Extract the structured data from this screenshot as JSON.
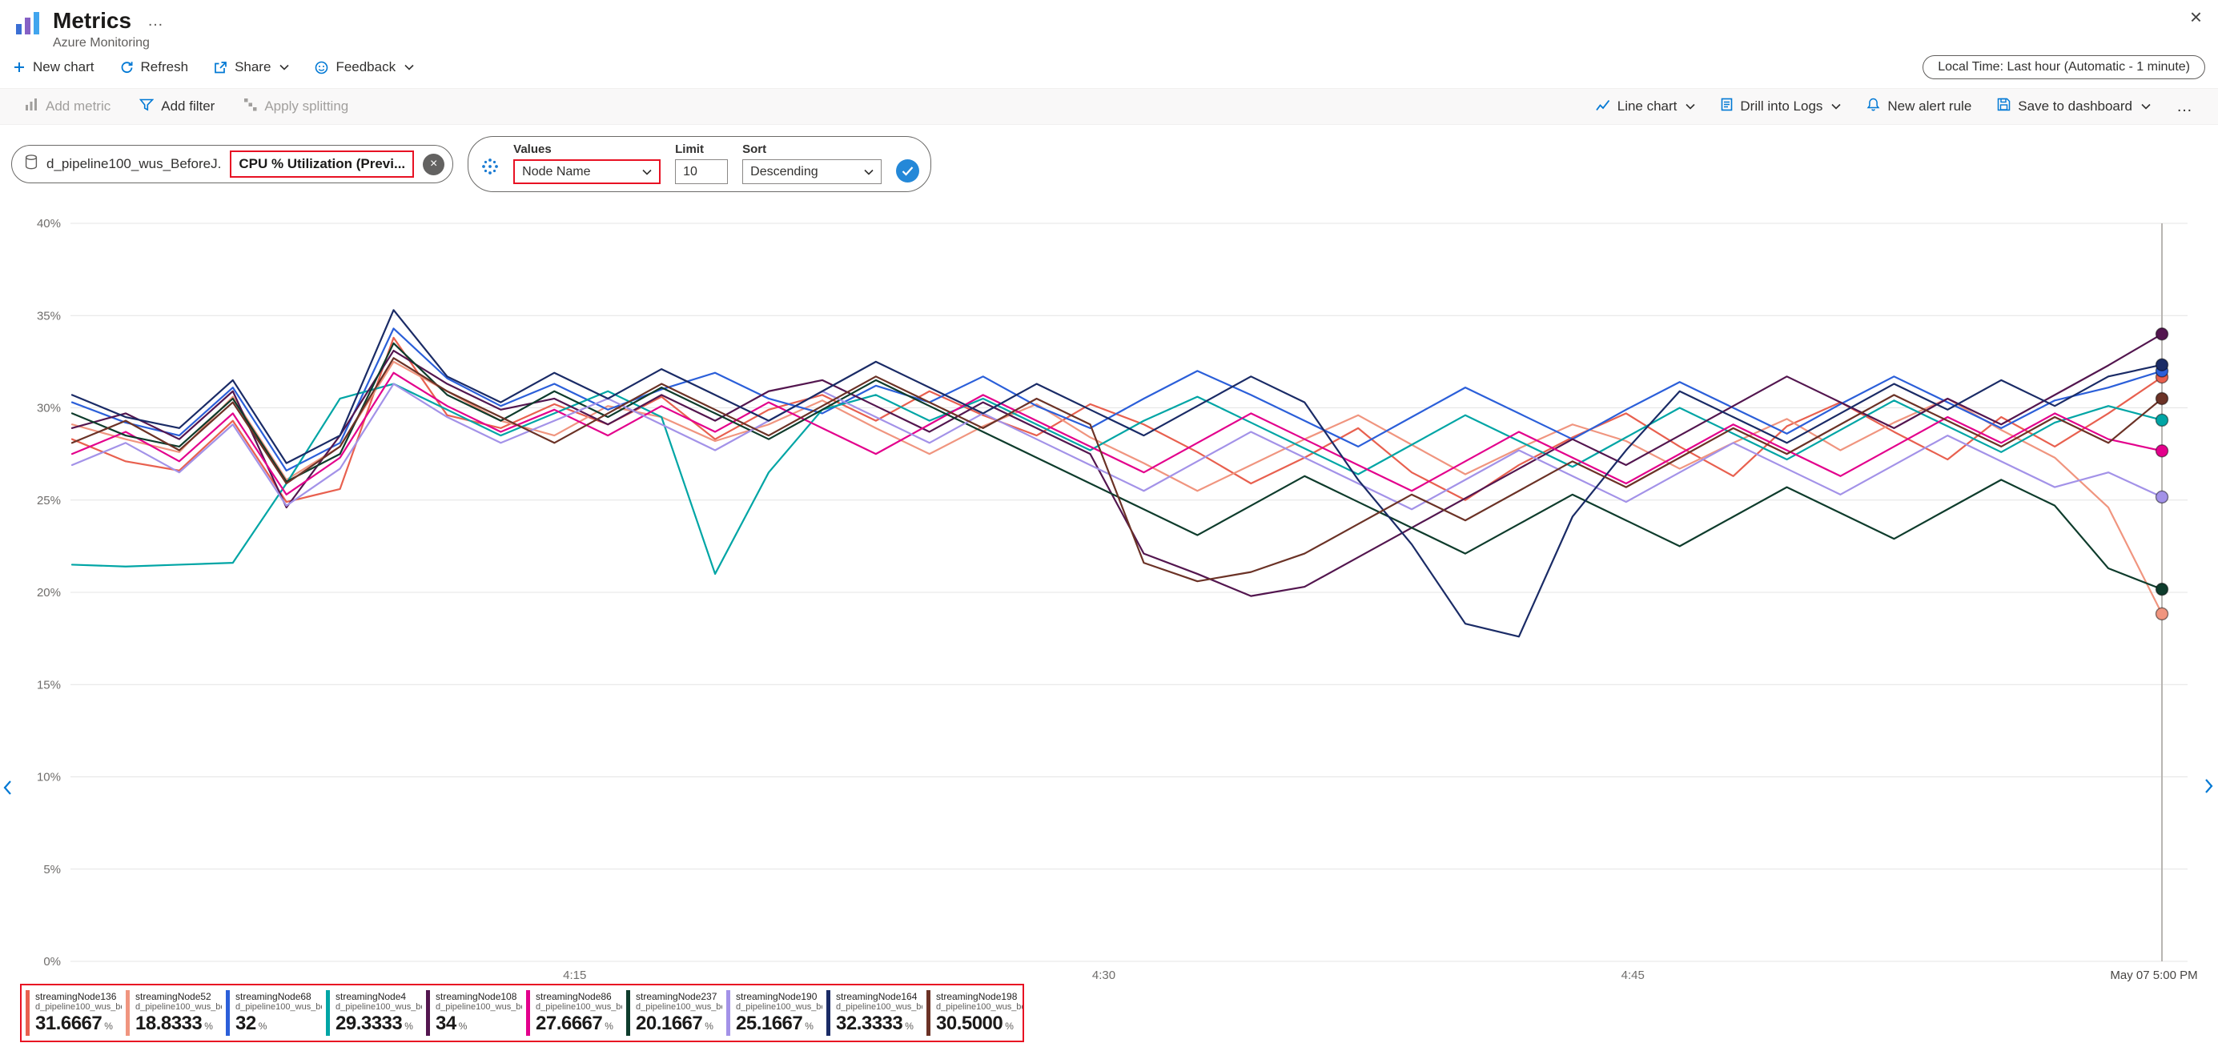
{
  "header": {
    "title": "Metrics",
    "subtitle": "Azure Monitoring",
    "more_glyph": "…",
    "close_glyph": "×"
  },
  "commandbar": {
    "items": [
      "New chart",
      "Refresh",
      "Share",
      "Feedback"
    ],
    "local_time": "Local Time: Last hour (Automatic - 1 minute)"
  },
  "toolbar": {
    "add_metric": "Add metric",
    "add_filter": "Add filter",
    "apply_splitting": "Apply splitting",
    "line_chart": "Line chart",
    "drill_into_logs": "Drill into Logs",
    "new_alert_rule": "New alert rule",
    "save_to_dashboard": "Save to dashboard",
    "more_glyph": "…"
  },
  "filters": {
    "resource": "d_pipeline100_wus_BeforeJ.",
    "metric": "CPU % Utilization (Previ...",
    "remove_glyph": "×",
    "values_label": "Values",
    "values_value": "Node Name",
    "limit_label": "Limit",
    "limit_value": "10",
    "sort_label": "Sort",
    "sort_value": "Descending"
  },
  "chart_data": {
    "type": "line",
    "title": "CPU % Utilization split by Node Name",
    "unit": "%",
    "ylim": [
      0,
      40
    ],
    "y_ticks": [
      0,
      5,
      10,
      15,
      20,
      25,
      30,
      35,
      40
    ],
    "x_ticks": [
      {
        "minute": 15,
        "label": "4:15"
      },
      {
        "minute": 30,
        "label": "4:30"
      },
      {
        "minute": 45,
        "label": "4:45"
      }
    ],
    "x_end_label": "May 07 5:00 PM",
    "time_window": "Last hour (Automatic - 1 minute)",
    "grid": true,
    "legend_position": "bottom",
    "series": [
      {
        "name": "streamingNode136",
        "color": "#E8604F",
        "values": [
          28.3,
          27.1,
          26.6,
          29.3,
          24.9,
          25.6,
          33.8,
          29.6,
          28.9,
          30.2,
          29.1,
          30.6,
          28.3,
          29.9,
          30.7,
          29.3,
          30.9,
          29.6,
          28.5,
          30.2,
          29.1,
          27.6,
          25.9,
          27.3,
          28.9,
          26.5,
          25.0,
          26.9,
          28.4,
          29.7,
          27.9,
          26.3,
          29.0,
          30.3,
          28.7,
          27.2,
          29.5,
          27.9,
          29.7,
          31.6667
        ]
      },
      {
        "name": "streamingNode52",
        "color": "#F0957F",
        "values": [
          29.1,
          28.3,
          27.6,
          30.6,
          26.1,
          27.9,
          32.5,
          30.9,
          29.3,
          28.5,
          30.1,
          29.5,
          28.2,
          29.1,
          30.4,
          28.9,
          27.5,
          29.0,
          30.2,
          28.4,
          27.0,
          25.5,
          26.9,
          28.3,
          29.6,
          28.0,
          26.4,
          27.8,
          29.1,
          28.2,
          26.7,
          28.1,
          29.4,
          27.7,
          29.2,
          30.5,
          28.8,
          27.3,
          24.6,
          18.8333
        ]
      },
      {
        "name": "streamingNode68",
        "color": "#2B5FD9",
        "values": [
          30.3,
          29.2,
          28.5,
          31.1,
          26.6,
          28.1,
          34.3,
          31.6,
          30.1,
          31.3,
          29.9,
          31.0,
          31.9,
          30.5,
          29.7,
          31.2,
          30.3,
          31.7,
          30.1,
          28.9,
          30.5,
          32.0,
          30.7,
          29.3,
          27.9,
          29.5,
          31.1,
          29.7,
          28.3,
          29.9,
          31.4,
          30.0,
          28.6,
          30.2,
          31.7,
          30.3,
          28.9,
          30.4,
          31.1,
          32
        ]
      },
      {
        "name": "streamingNode4",
        "color": "#00A5A5",
        "values": [
          21.5,
          21.4,
          21.5,
          21.6,
          25.9,
          30.5,
          31.3,
          29.9,
          28.5,
          29.7,
          30.9,
          29.5,
          21.0,
          26.5,
          29.9,
          30.7,
          29.3,
          30.5,
          29.1,
          27.7,
          29.3,
          30.6,
          29.2,
          27.8,
          26.4,
          28.0,
          29.6,
          28.2,
          26.8,
          28.4,
          30.0,
          28.6,
          27.2,
          28.8,
          30.4,
          29.0,
          27.6,
          29.2,
          30.1,
          29.3333
        ]
      },
      {
        "name": "streamingNode108",
        "color": "#53164F",
        "values": [
          28.9,
          29.7,
          28.3,
          30.9,
          24.6,
          28.5,
          33.1,
          31.3,
          29.9,
          30.5,
          29.1,
          30.7,
          29.3,
          30.9,
          31.5,
          30.1,
          28.7,
          30.3,
          28.9,
          27.5,
          22.1,
          21.0,
          19.8,
          20.3,
          21.9,
          23.5,
          25.1,
          26.7,
          28.3,
          26.9,
          28.5,
          30.1,
          31.7,
          30.3,
          28.9,
          30.5,
          29.1,
          30.7,
          32.3,
          34
        ]
      },
      {
        "name": "streamingNode86",
        "color": "#E3008C",
        "values": [
          27.5,
          28.7,
          27.1,
          29.7,
          25.3,
          27.3,
          31.9,
          30.1,
          28.7,
          29.9,
          28.5,
          30.1,
          28.7,
          30.3,
          28.9,
          27.5,
          29.1,
          30.7,
          29.3,
          27.9,
          26.5,
          28.1,
          29.7,
          28.3,
          26.9,
          25.5,
          27.1,
          28.7,
          27.3,
          25.9,
          27.5,
          29.1,
          27.7,
          26.3,
          27.9,
          29.5,
          28.1,
          29.7,
          28.3,
          27.6667
        ]
      },
      {
        "name": "streamingNode237",
        "color": "#0E3C2C",
        "values": [
          29.7,
          28.5,
          27.9,
          30.5,
          26.0,
          27.5,
          33.5,
          30.7,
          29.3,
          30.9,
          29.5,
          31.1,
          29.7,
          28.3,
          29.9,
          31.5,
          30.1,
          28.7,
          27.3,
          25.9,
          24.5,
          23.1,
          24.7,
          26.3,
          24.9,
          23.5,
          22.1,
          23.7,
          25.3,
          23.9,
          22.5,
          24.1,
          25.7,
          24.3,
          22.9,
          24.5,
          26.1,
          24.7,
          21.3,
          20.1667
        ]
      },
      {
        "name": "streamingNode190",
        "color": "#A392E8",
        "values": [
          26.9,
          28.1,
          26.5,
          29.1,
          24.7,
          26.7,
          31.3,
          29.5,
          28.1,
          29.3,
          30.5,
          29.1,
          27.7,
          29.3,
          30.9,
          29.5,
          28.1,
          29.7,
          28.3,
          26.9,
          25.5,
          27.1,
          28.7,
          27.3,
          25.9,
          24.5,
          26.1,
          27.7,
          26.3,
          24.9,
          26.5,
          28.1,
          26.7,
          25.3,
          26.9,
          28.5,
          27.1,
          25.7,
          26.5,
          25.1667
        ]
      },
      {
        "name": "streamingNode164",
        "color": "#1A2B66",
        "values": [
          30.7,
          29.5,
          28.9,
          31.5,
          27.0,
          28.5,
          35.3,
          31.7,
          30.3,
          31.9,
          30.5,
          32.1,
          30.7,
          29.3,
          30.9,
          32.5,
          31.1,
          29.7,
          31.3,
          29.9,
          28.5,
          30.1,
          31.7,
          30.3,
          26.1,
          22.6,
          18.3,
          17.6,
          24.1,
          27.7,
          30.9,
          29.5,
          28.1,
          29.7,
          31.3,
          29.9,
          31.5,
          30.1,
          31.7,
          32.3333
        ]
      },
      {
        "name": "streamingNode198",
        "color": "#6B3226",
        "values": [
          28.1,
          29.3,
          27.7,
          30.3,
          25.9,
          27.9,
          32.7,
          30.9,
          29.5,
          28.1,
          29.7,
          31.3,
          29.9,
          28.5,
          30.1,
          31.7,
          30.3,
          28.9,
          30.5,
          29.1,
          21.6,
          20.6,
          21.1,
          22.1,
          23.7,
          25.3,
          23.9,
          25.5,
          27.1,
          25.7,
          27.3,
          28.9,
          27.5,
          29.1,
          30.7,
          29.3,
          27.9,
          29.5,
          28.1,
          30.5
        ]
      }
    ]
  },
  "legend": {
    "items": [
      {
        "name": "streamingNode136",
        "resource": "d_pipeline100_wus_be...",
        "value": "31.6667",
        "unit": "%",
        "color": "#E8604F"
      },
      {
        "name": "streamingNode52",
        "resource": "d_pipeline100_wus_be...",
        "value": "18.8333",
        "unit": "%",
        "color": "#F0957F"
      },
      {
        "name": "streamingNode68",
        "resource": "d_pipeline100_wus_be...",
        "value": "32",
        "unit": "%",
        "color": "#2B5FD9"
      },
      {
        "name": "streamingNode4",
        "resource": "d_pipeline100_wus_be...",
        "value": "29.3333",
        "unit": "%",
        "color": "#00A5A5"
      },
      {
        "name": "streamingNode108",
        "resource": "d_pipeline100_wus_be...",
        "value": "34",
        "unit": "%",
        "color": "#53164F"
      },
      {
        "name": "streamingNode86",
        "resource": "d_pipeline100_wus_be...",
        "value": "27.6667",
        "unit": "%",
        "color": "#E3008C"
      },
      {
        "name": "streamingNode237",
        "resource": "d_pipeline100_wus_be...",
        "value": "20.1667",
        "unit": "%",
        "color": "#0E3C2C"
      },
      {
        "name": "streamingNode190",
        "resource": "d_pipeline100_wus_be...",
        "value": "25.1667",
        "unit": "%",
        "color": "#A392E8"
      },
      {
        "name": "streamingNode164",
        "resource": "d_pipeline100_wus_be...",
        "value": "32.3333",
        "unit": "%",
        "color": "#1A2B66"
      },
      {
        "name": "streamingNode198",
        "resource": "d_pipeline100_wus_be...",
        "value": "30.5000",
        "unit": "%",
        "color": "#6B3226"
      }
    ]
  },
  "colors": {
    "accent": "#0078d4",
    "highlight_red": "#e81123",
    "text": "#323130",
    "text_secondary": "#605e5c",
    "disabled": "#a19f9d",
    "gridline": "#e4e4e4"
  }
}
